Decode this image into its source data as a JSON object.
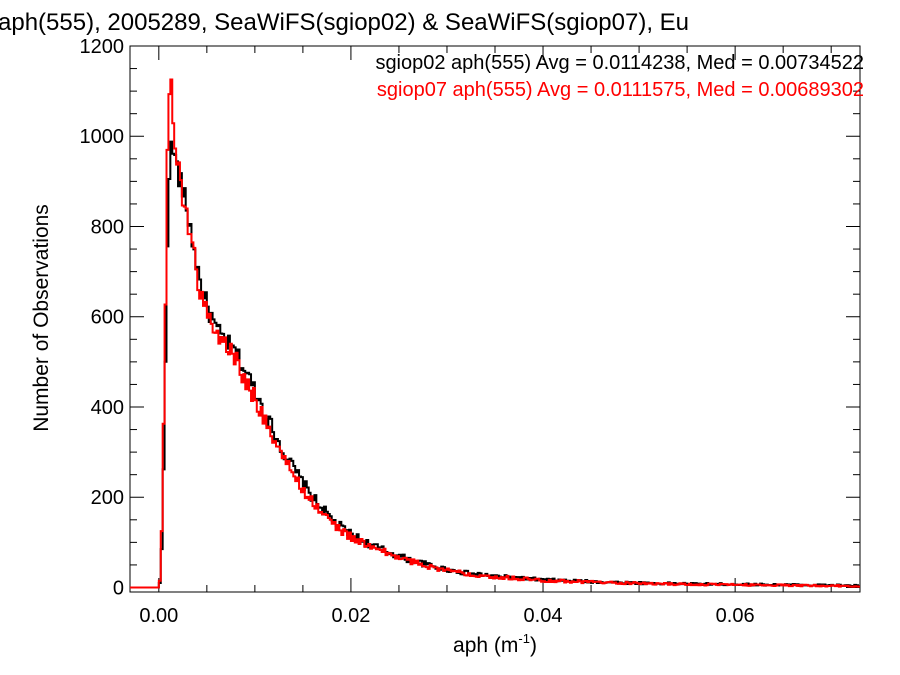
{
  "chart_data": {
    "type": "histogram-step",
    "title": "aph(555), 2005289, SeaWiFS(sgiop02) & SeaWiFS(sgiop07), Eu",
    "xlabel_base": "aph (m",
    "xlabel_sup": "-1",
    "xlabel_end": ")",
    "ylabel": "Number of Observations",
    "xlim": [
      -0.003,
      0.073
    ],
    "ylim": [
      -10,
      1200
    ],
    "x_ticks": [
      0.0,
      0.02,
      0.04,
      0.06
    ],
    "x_tick_labels": [
      "0.00",
      "0.02",
      "0.04",
      "0.06"
    ],
    "y_ticks": [
      0,
      200,
      400,
      600,
      800,
      1000,
      1200
    ],
    "y_tick_labels": [
      "0",
      "200",
      "400",
      "600",
      "800",
      "1000",
      "1200"
    ],
    "grid": false,
    "annotations": [
      "sgiop02 aph(555) Avg = 0.0114238, Med = 0.00734522",
      "sgiop07 aph(555) Avg = 0.0111575, Med = 0.00689302"
    ],
    "series": [
      {
        "name": "sgiop02",
        "color": "#000000",
        "points": [
          [
            -0.003,
            0
          ],
          [
            0.0,
            0
          ],
          [
            0.0002,
            20
          ],
          [
            0.0004,
            150
          ],
          [
            0.0006,
            360
          ],
          [
            0.0008,
            640
          ],
          [
            0.001,
            900
          ],
          [
            0.0012,
            960
          ],
          [
            0.0014,
            975
          ],
          [
            0.0016,
            960
          ],
          [
            0.0018,
            940
          ],
          [
            0.002,
            920
          ],
          [
            0.0025,
            880
          ],
          [
            0.003,
            830
          ],
          [
            0.0035,
            770
          ],
          [
            0.004,
            710
          ],
          [
            0.0045,
            660
          ],
          [
            0.005,
            625
          ],
          [
            0.006,
            570
          ],
          [
            0.007,
            545
          ],
          [
            0.008,
            520
          ],
          [
            0.009,
            480
          ],
          [
            0.01,
            440
          ],
          [
            0.011,
            390
          ],
          [
            0.012,
            345
          ],
          [
            0.013,
            300
          ],
          [
            0.014,
            265
          ],
          [
            0.015,
            232
          ],
          [
            0.016,
            200
          ],
          [
            0.017,
            175
          ],
          [
            0.018,
            152
          ],
          [
            0.019,
            133
          ],
          [
            0.02,
            118
          ],
          [
            0.022,
            95
          ],
          [
            0.024,
            78
          ],
          [
            0.026,
            62
          ],
          [
            0.028,
            50
          ],
          [
            0.03,
            40
          ],
          [
            0.032,
            32
          ],
          [
            0.035,
            25
          ],
          [
            0.038,
            20
          ],
          [
            0.04,
            17
          ],
          [
            0.045,
            13
          ],
          [
            0.05,
            10
          ],
          [
            0.055,
            8
          ],
          [
            0.06,
            7
          ],
          [
            0.065,
            6
          ],
          [
            0.07,
            5
          ],
          [
            0.073,
            4
          ]
        ]
      },
      {
        "name": "sgiop07",
        "color": "#ff0000",
        "points": [
          [
            -0.003,
            0
          ],
          [
            0.0,
            0
          ],
          [
            0.0002,
            30
          ],
          [
            0.0004,
            220
          ],
          [
            0.0006,
            500
          ],
          [
            0.0008,
            800
          ],
          [
            0.001,
            1100
          ],
          [
            0.0012,
            1105
          ],
          [
            0.0014,
            1090
          ],
          [
            0.0016,
            990
          ],
          [
            0.0018,
            960
          ],
          [
            0.002,
            935
          ],
          [
            0.0025,
            870
          ],
          [
            0.003,
            820
          ],
          [
            0.0035,
            760
          ],
          [
            0.004,
            690
          ],
          [
            0.0045,
            640
          ],
          [
            0.005,
            610
          ],
          [
            0.006,
            560
          ],
          [
            0.007,
            540
          ],
          [
            0.008,
            505
          ],
          [
            0.009,
            460
          ],
          [
            0.01,
            420
          ],
          [
            0.011,
            375
          ],
          [
            0.012,
            330
          ],
          [
            0.013,
            285
          ],
          [
            0.014,
            250
          ],
          [
            0.015,
            218
          ],
          [
            0.016,
            190
          ],
          [
            0.017,
            165
          ],
          [
            0.018,
            144
          ],
          [
            0.019,
            126
          ],
          [
            0.02,
            112
          ],
          [
            0.022,
            90
          ],
          [
            0.024,
            74
          ],
          [
            0.026,
            59
          ],
          [
            0.028,
            48
          ],
          [
            0.03,
            38
          ],
          [
            0.032,
            31
          ],
          [
            0.035,
            24
          ],
          [
            0.038,
            19
          ],
          [
            0.04,
            16
          ],
          [
            0.045,
            12
          ],
          [
            0.05,
            9
          ],
          [
            0.055,
            7
          ],
          [
            0.06,
            6
          ],
          [
            0.065,
            5
          ],
          [
            0.07,
            4
          ],
          [
            0.073,
            3
          ]
        ]
      }
    ]
  }
}
